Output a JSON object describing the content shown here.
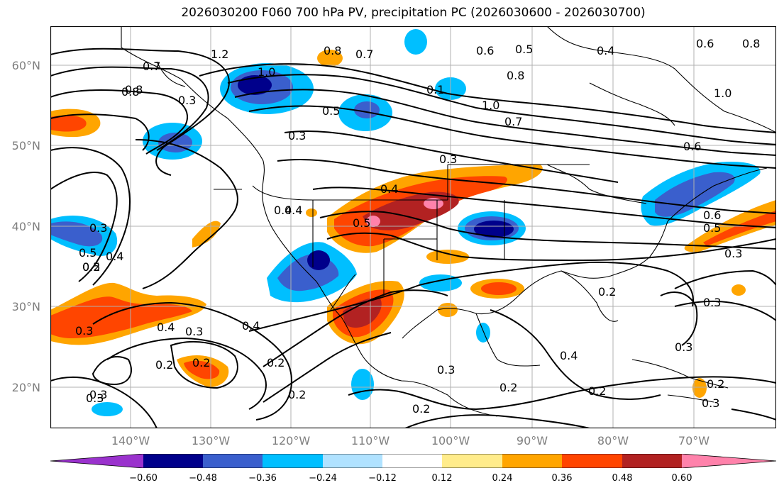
{
  "title": "2026030200 F060 700 hPa PV, precipitation PC (2026030600 - 2026030700)",
  "latitude_labels": [
    "60°N",
    "50°N",
    "40°N",
    "30°N",
    "20°N"
  ],
  "longitude_labels": [
    "140°W",
    "130°W",
    "120°W",
    "110°W",
    "100°W",
    "90°W",
    "80°W",
    "70°W"
  ],
  "colorbar": {
    "ticks": [
      "−0.60",
      "−0.48",
      "−0.36",
      "−0.24",
      "−0.12",
      "0.12",
      "0.24",
      "0.36",
      "0.48",
      "0.60"
    ],
    "colors": [
      "#9a32cd",
      "#00008b",
      "#3a5fcd",
      "#00bfff",
      "#b0e2ff",
      "#ffffff",
      "#ffec8b",
      "#ffa500",
      "#ff4500",
      "#b22222",
      "#ff82ab"
    ]
  },
  "contour_labels": {
    "c1": "1.2",
    "c2": "1.0",
    "c3": "0.8",
    "c4": "0.7",
    "c5": "0.5",
    "c6": "0.4",
    "c7": "0.3",
    "c8": "0.6",
    "c9": "0.2",
    "c10": "0.1",
    "c11": "0.3",
    "c12": "0.5",
    "c13": "0.4",
    "c14": "0.3",
    "c15": "0.2",
    "c16": "0.3",
    "c17": "0.2",
    "c18": "0.2",
    "c19": "0.4",
    "c20": "0.3",
    "c21": "0.2",
    "c22": "0.2",
    "c23": "0.4",
    "c24": "0.2",
    "c25": "0.3",
    "c26": "0.2",
    "c27": "0.3",
    "c28": "1.0",
    "c29": "0.7",
    "c30": "0.6",
    "c31": "0.3",
    "c32": "0.4",
    "c33": "0.5",
    "c34": "0.3",
    "c35": "0.8",
    "c36": "0.5",
    "c37": "0.4",
    "c38": "0.7",
    "c39": "0.8",
    "c40": "0.6",
    "c41": "0.2",
    "c42": "0.4",
    "c43": "0.3",
    "c44": "0.2",
    "c45": "0.3",
    "c46": "0.6",
    "c47": "1.0",
    "c48": "0.8",
    "c49": "0.8",
    "c50": "0.5",
    "c51": "0.5",
    "c52": "0.3",
    "c53": "0.4",
    "c54": "0.3"
  }
}
